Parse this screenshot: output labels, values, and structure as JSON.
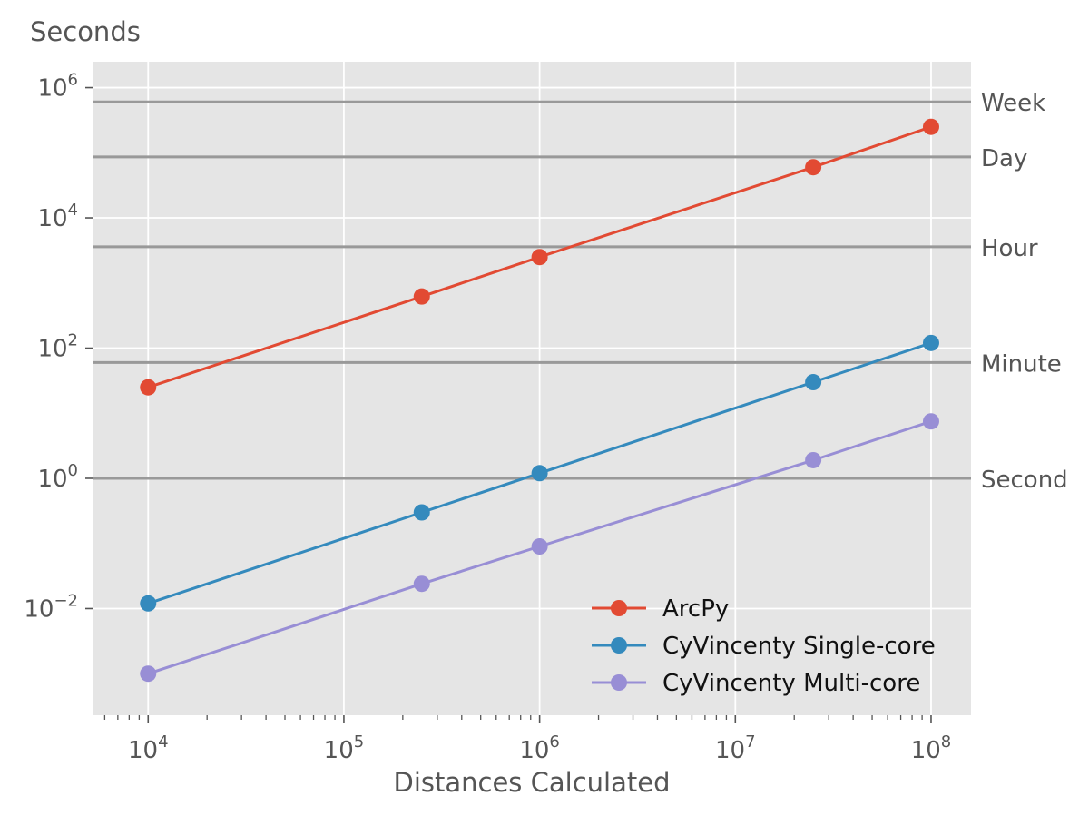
{
  "chart_data": {
    "type": "line",
    "xlabel": "Distances Calculated",
    "ylabel": "Seconds",
    "xscale": "log",
    "yscale": "log",
    "xlim": [
      5200.0,
      160000000.0
    ],
    "ylim": [
      0.00023,
      2500000.0
    ],
    "xticks": [
      {
        "value": 10000.0,
        "base": "10",
        "exp": "4"
      },
      {
        "value": 100000.0,
        "base": "10",
        "exp": "5"
      },
      {
        "value": 1000000.0,
        "base": "10",
        "exp": "6"
      },
      {
        "value": 10000000.0,
        "base": "10",
        "exp": "7"
      },
      {
        "value": 100000000.0,
        "base": "10",
        "exp": "8"
      }
    ],
    "yticks": [
      {
        "value": 1000000.0,
        "base": "10",
        "exp": "6"
      },
      {
        "value": 10000.0,
        "base": "10",
        "exp": "4"
      },
      {
        "value": 100.0,
        "base": "10",
        "exp": "2"
      },
      {
        "value": 1,
        "base": "10",
        "exp": "0"
      },
      {
        "value": 0.01,
        "base": "10",
        "exp": "−2"
      }
    ],
    "grid": true,
    "legend_position": "lower-right",
    "x": [
      10000,
      250000,
      1000000,
      25000000,
      100000000
    ],
    "series": [
      {
        "name": "ArcPy",
        "color": "#E24A33",
        "values": [
          25,
          620,
          2500,
          60000,
          250000
        ]
      },
      {
        "name": "CyVincenty Single-core",
        "color": "#348ABD",
        "values": [
          0.012,
          0.3,
          1.2,
          30,
          120
        ]
      },
      {
        "name": "CyVincenty Multi-core",
        "color": "#988ED5",
        "values": [
          0.001,
          0.024,
          0.09,
          1.9,
          7.5
        ]
      }
    ],
    "reference_lines": [
      {
        "label": "Week",
        "value": 604800
      },
      {
        "label": "Day",
        "value": 86400
      },
      {
        "label": "Hour",
        "value": 3600
      },
      {
        "label": "Minute",
        "value": 60
      },
      {
        "label": "Second",
        "value": 1
      }
    ],
    "colors": {
      "plot_background": "#E5E5E5",
      "grid": "#FFFFFF",
      "reference_line": "#999999",
      "text": "#555555"
    }
  }
}
